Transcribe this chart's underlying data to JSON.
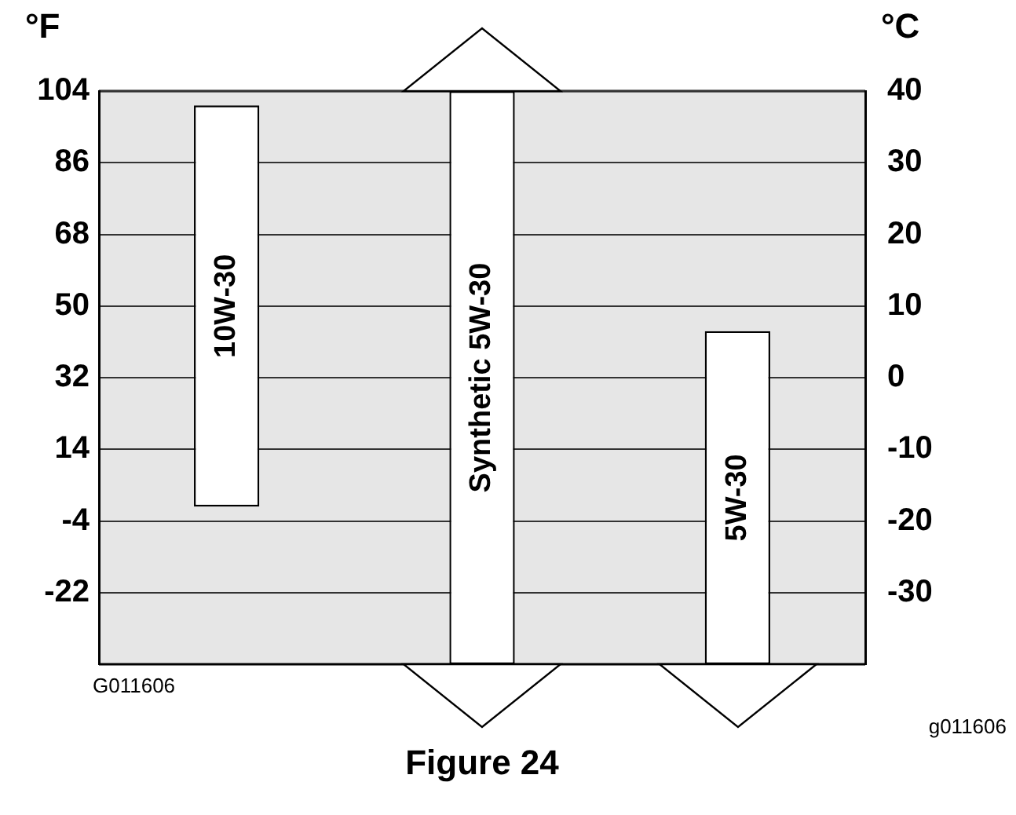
{
  "chart_data": {
    "type": "bar",
    "categories": [
      "10W-30",
      "Synthetic 5W-30",
      "5W-30"
    ],
    "series": [
      {
        "color": "#ffffff",
        "values": [
          56,
          80,
          46.5
        ],
        "base": [
          -18,
          -40,
          -40
        ],
        "axis": "y2"
      }
    ],
    "ylabel": "°F",
    "y2label": "°C",
    "ylim": [
      -40,
      104
    ],
    "yticks": [
      104,
      86,
      68,
      50,
      32,
      14,
      -4,
      -22
    ],
    "y2lim": [
      -40,
      40
    ],
    "y2ticks": [
      40,
      30,
      20,
      10,
      0,
      -10,
      -20,
      -30
    ],
    "grid": "y",
    "tick_labels": "y",
    "legend": false,
    "annotations": [
      "G011606",
      "g011606",
      "Figure 24"
    ]
  }
}
